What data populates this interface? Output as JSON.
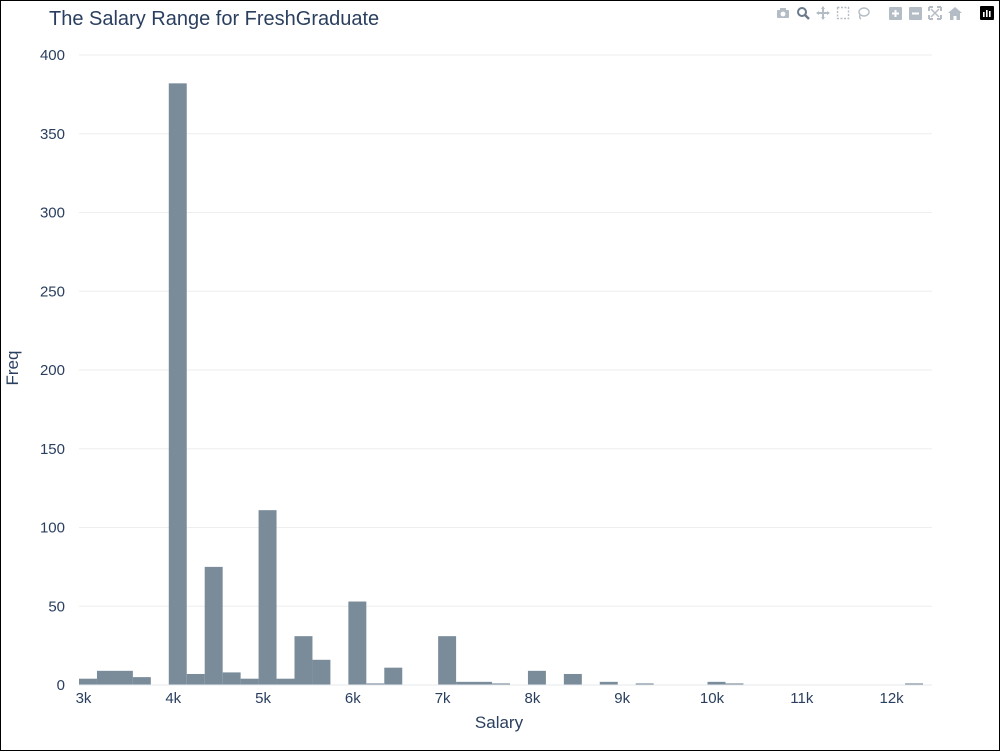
{
  "title": "The Salary Range for FreshGraduate",
  "modebar": {
    "icons": [
      "camera-icon",
      "zoom-icon",
      "pan-icon",
      "box-select-icon",
      "lasso-select-icon",
      "zoom-in-icon",
      "zoom-out-icon",
      "autoscale-icon",
      "reset-axes-icon",
      "plotly-logo-icon"
    ]
  },
  "colors": {
    "bar": "#7a8b9a",
    "grid": "#eeeeee",
    "text": "#2a3f5f",
    "axisline": "#e4e8ee"
  },
  "chart_data": {
    "type": "bar",
    "title": "The Salary Range for FreshGraduate",
    "xlabel": "Salary",
    "ylabel": "Freq",
    "xlim": [
      2950,
      12450
    ],
    "ylim": [
      0,
      400
    ],
    "grid": true,
    "xticks": [
      {
        "value": 3000,
        "label": "3k"
      },
      {
        "value": 4000,
        "label": "4k"
      },
      {
        "value": 5000,
        "label": "5k"
      },
      {
        "value": 6000,
        "label": "6k"
      },
      {
        "value": 7000,
        "label": "7k"
      },
      {
        "value": 8000,
        "label": "8k"
      },
      {
        "value": 9000,
        "label": "9k"
      },
      {
        "value": 10000,
        "label": "10k"
      },
      {
        "value": 11000,
        "label": "11k"
      },
      {
        "value": 12000,
        "label": "12k"
      }
    ],
    "yticks": [
      {
        "value": 0,
        "label": "0"
      },
      {
        "value": 50,
        "label": "50"
      },
      {
        "value": 100,
        "label": "100"
      },
      {
        "value": 150,
        "label": "150"
      },
      {
        "value": 200,
        "label": "200"
      },
      {
        "value": 250,
        "label": "250"
      },
      {
        "value": 300,
        "label": "300"
      },
      {
        "value": 350,
        "label": "350"
      },
      {
        "value": 400,
        "label": "400"
      }
    ],
    "bin_width": 200,
    "bins": [
      {
        "x0": 2950,
        "x1": 3150,
        "y": 4
      },
      {
        "x0": 3150,
        "x1": 3550,
        "y": 9
      },
      {
        "x0": 3550,
        "x1": 3750,
        "y": 5
      },
      {
        "x0": 3950,
        "x1": 4150,
        "y": 382
      },
      {
        "x0": 4150,
        "x1": 4350,
        "y": 7
      },
      {
        "x0": 4350,
        "x1": 4550,
        "y": 75
      },
      {
        "x0": 4550,
        "x1": 4750,
        "y": 8
      },
      {
        "x0": 4750,
        "x1": 4950,
        "y": 4
      },
      {
        "x0": 4950,
        "x1": 5150,
        "y": 111
      },
      {
        "x0": 5150,
        "x1": 5350,
        "y": 4
      },
      {
        "x0": 5350,
        "x1": 5550,
        "y": 31
      },
      {
        "x0": 5550,
        "x1": 5750,
        "y": 16
      },
      {
        "x0": 5950,
        "x1": 6150,
        "y": 53
      },
      {
        "x0": 6150,
        "x1": 6350,
        "y": 1
      },
      {
        "x0": 6350,
        "x1": 6550,
        "y": 11
      },
      {
        "x0": 6950,
        "x1": 7150,
        "y": 31
      },
      {
        "x0": 7150,
        "x1": 7550,
        "y": 2
      },
      {
        "x0": 7550,
        "x1": 7750,
        "y": 1
      },
      {
        "x0": 7950,
        "x1": 8150,
        "y": 9
      },
      {
        "x0": 8350,
        "x1": 8550,
        "y": 7
      },
      {
        "x0": 8750,
        "x1": 8950,
        "y": 2
      },
      {
        "x0": 9150,
        "x1": 9350,
        "y": 1
      },
      {
        "x0": 9950,
        "x1": 10150,
        "y": 2
      },
      {
        "x0": 10150,
        "x1": 10350,
        "y": 1
      },
      {
        "x0": 12150,
        "x1": 12350,
        "y": 1
      }
    ]
  }
}
